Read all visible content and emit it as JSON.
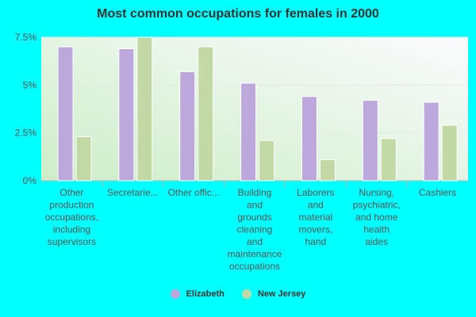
{
  "chart_data": {
    "type": "bar",
    "title": "Most common occupations for females in 2000",
    "categories": [
      [
        "Other",
        "production",
        "occupations,",
        "including",
        "supervisors"
      ],
      [
        "Secretarie..."
      ],
      [
        "Other offic..."
      ],
      [
        "Building",
        "and",
        "grounds",
        "cleaning",
        "and",
        "maintenance",
        "occupations"
      ],
      [
        "Laborers",
        "and",
        "material",
        "movers,",
        "hand"
      ],
      [
        "Nursing,",
        "psychiatric,",
        "and home",
        "health",
        "aides"
      ],
      [
        "Cashiers"
      ]
    ],
    "series": [
      {
        "name": "Elizabeth",
        "color": "#bca8db",
        "values": [
          7.0,
          6.9,
          5.7,
          5.1,
          4.4,
          4.2,
          4.1
        ]
      },
      {
        "name": "New Jersey",
        "color": "#c2d9a5",
        "values": [
          2.3,
          7.5,
          7.0,
          2.1,
          1.1,
          2.2,
          2.9
        ]
      }
    ],
    "yticks": [
      "0%",
      "2.5%",
      "5%",
      "7.5%"
    ],
    "ytick_values": [
      0,
      2.5,
      5,
      7.5
    ],
    "ylim": [
      0,
      7.5
    ],
    "legend_position": "bottom"
  }
}
